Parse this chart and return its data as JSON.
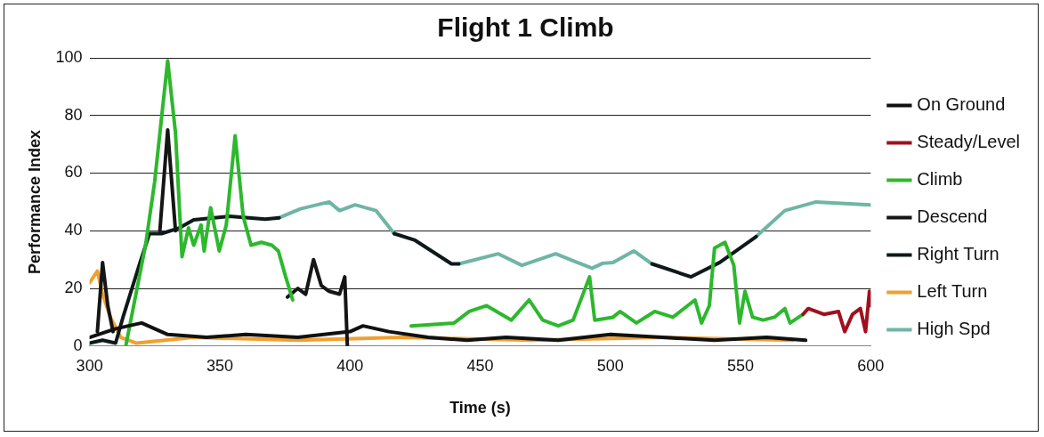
{
  "chart_data": {
    "type": "line",
    "title": "Flight 1 Climb",
    "xlabel": "Time (s)",
    "ylabel": "Performance Index",
    "xlim": [
      300,
      600
    ],
    "xticks": [
      300,
      350,
      400,
      450,
      500,
      550,
      600
    ],
    "ylim": [
      0,
      100
    ],
    "yticks": [
      0,
      20,
      40,
      60,
      80,
      100
    ],
    "grid": "y",
    "legend": "right",
    "marker": "none",
    "line_style": "solid",
    "series": [
      {
        "name": "On Ground",
        "color": "#111111",
        "x": [
          300,
          310,
          320,
          330,
          345,
          360,
          380,
          400,
          405,
          415,
          430,
          445,
          460,
          480,
          500,
          520,
          540,
          560,
          575
        ],
        "values": [
          3,
          6,
          8,
          4,
          3,
          4,
          3,
          5,
          7,
          5,
          3,
          2,
          3,
          2,
          4,
          3,
          2,
          3,
          2
        ]
      },
      {
        "name": "Steady/Level",
        "color": "#a0101e",
        "x": [
          574,
          576,
          582,
          587.6,
          590,
          593,
          596,
          598,
          599.5,
          600
        ],
        "values": [
          11,
          13,
          11,
          12,
          5,
          11,
          13,
          5,
          19,
          14
        ]
      },
      {
        "name": "Climb",
        "color": "#2db82d",
        "x": [
          313.9,
          321.5,
          325,
          330,
          333,
          335.5,
          338,
          340,
          342.8,
          344,
          346.5,
          349.8,
          352.5,
          355.9,
          359,
          362,
          366,
          370,
          372.5,
          375,
          378,
          null,
          423.5,
          440,
          445.8,
          452.5,
          462,
          468.8,
          474,
          480,
          485.7,
          492,
          494,
          501,
          503.7,
          510,
          517,
          524,
          532.5,
          535,
          538,
          540,
          544,
          547.4,
          549.6,
          551.7,
          554.6,
          558.7,
          563,
          567,
          569,
          574
        ],
        "values": [
          0,
          35,
          57,
          99,
          74,
          31,
          41,
          35,
          42,
          33,
          48,
          33,
          42,
          73,
          45,
          35,
          36,
          35,
          33,
          25,
          16,
          null,
          7,
          8,
          12,
          14,
          9,
          16,
          9,
          7,
          9,
          24,
          9,
          10,
          12,
          8,
          12,
          10,
          16,
          8,
          14,
          34,
          36,
          28,
          8,
          19,
          10,
          9,
          10,
          13,
          8,
          11
        ]
      },
      {
        "name": "Descend",
        "color": "#151515",
        "x": [
          303,
          305,
          307,
          309,
          null,
          327,
          330,
          333,
          null,
          376,
          380,
          383,
          386,
          389,
          392,
          396,
          398,
          399
        ],
        "values": [
          5,
          29,
          14,
          5,
          null,
          40,
          75,
          40,
          null,
          17,
          20,
          18,
          30,
          21,
          19,
          18,
          24,
          0
        ]
      },
      {
        "name": "Right Turn",
        "color": "#0e1a1a",
        "x": [
          300,
          305,
          310,
          313,
          319.4,
          323,
          327.6,
          334.5,
          340,
          353.7,
          367.5,
          372.8,
          null,
          417,
          425,
          439,
          441.8,
          null,
          516,
          531,
          542,
          556
        ],
        "values": [
          1,
          2,
          1,
          10.5,
          29,
          39,
          39,
          41,
          43.8,
          45,
          44,
          44.5,
          null,
          39,
          36.7,
          28.5,
          28.5,
          null,
          28.5,
          24,
          29,
          38
        ]
      },
      {
        "name": "Left Turn",
        "color": "#f0a030",
        "x": [
          300,
          303,
          305,
          308,
          312,
          318,
          340,
          380,
          420,
          470,
          520,
          570
        ],
        "values": [
          22,
          26,
          18,
          10,
          3,
          1,
          3,
          2,
          3,
          2,
          3,
          2
        ]
      },
      {
        "name": "High Spd",
        "color": "#6fb5a5",
        "x": [
          372.8,
          381,
          392,
          396,
          402,
          410,
          417,
          null,
          441.8,
          457,
          466,
          479,
          486,
          493,
          497,
          501,
          509,
          516,
          null,
          556,
          567,
          579,
          600
        ],
        "values": [
          44.5,
          47.6,
          50,
          47,
          49,
          47,
          39,
          null,
          28.5,
          32,
          28,
          32,
          29.5,
          27,
          28.7,
          29,
          33,
          28.5,
          null,
          38,
          47,
          50,
          49
        ]
      }
    ]
  }
}
